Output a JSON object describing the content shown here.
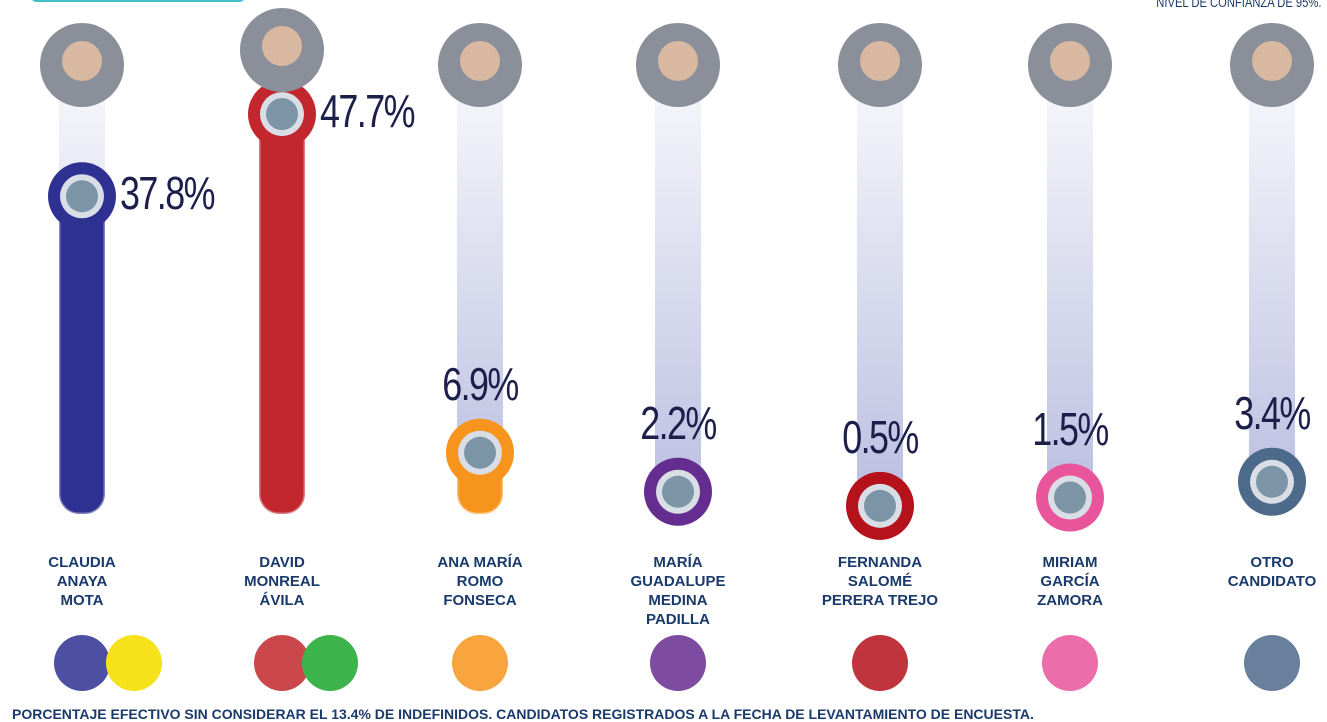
{
  "chart_data": {
    "type": "bar",
    "note": "NIVEL DE CONFIANZA DE 95%.",
    "categories": [
      "CLAUDIA\nANAYA\nMOTA",
      "DAVID\nMONREAL\nÁVILA",
      "ANA MARÍA\nROMO\nFONSECA",
      "MARÍA\nGUADALUPE\nMEDINA\nPADILLA",
      "FERNANDA\nSALOMÉ\nPERERA TREJO",
      "MIRIAM\nGARCÍA\nZAMORA",
      "OTRO\nCANDIDATO"
    ],
    "values": [
      37.8,
      47.7,
      6.9,
      2.2,
      0.5,
      1.5,
      3.4
    ],
    "value_labels": [
      "37.8%",
      "47.7%",
      "6.9%",
      "2.2%",
      "0.5%",
      "1.5%",
      "3.4%"
    ],
    "colors": [
      "#2e3192",
      "#c1272d",
      "#f7941d",
      "#662d91",
      "#b5121b",
      "#e8559b",
      "#4d6a8a"
    ],
    "footer": "PORCENTAJE EFECTIVO SIN CONSIDERAR EL 13.4% DE INDEFINIDOS. CANDIDATOS REGISTRADOS A LA FECHA DE LEVANTAMIENTO DE ENCUESTA."
  }
}
